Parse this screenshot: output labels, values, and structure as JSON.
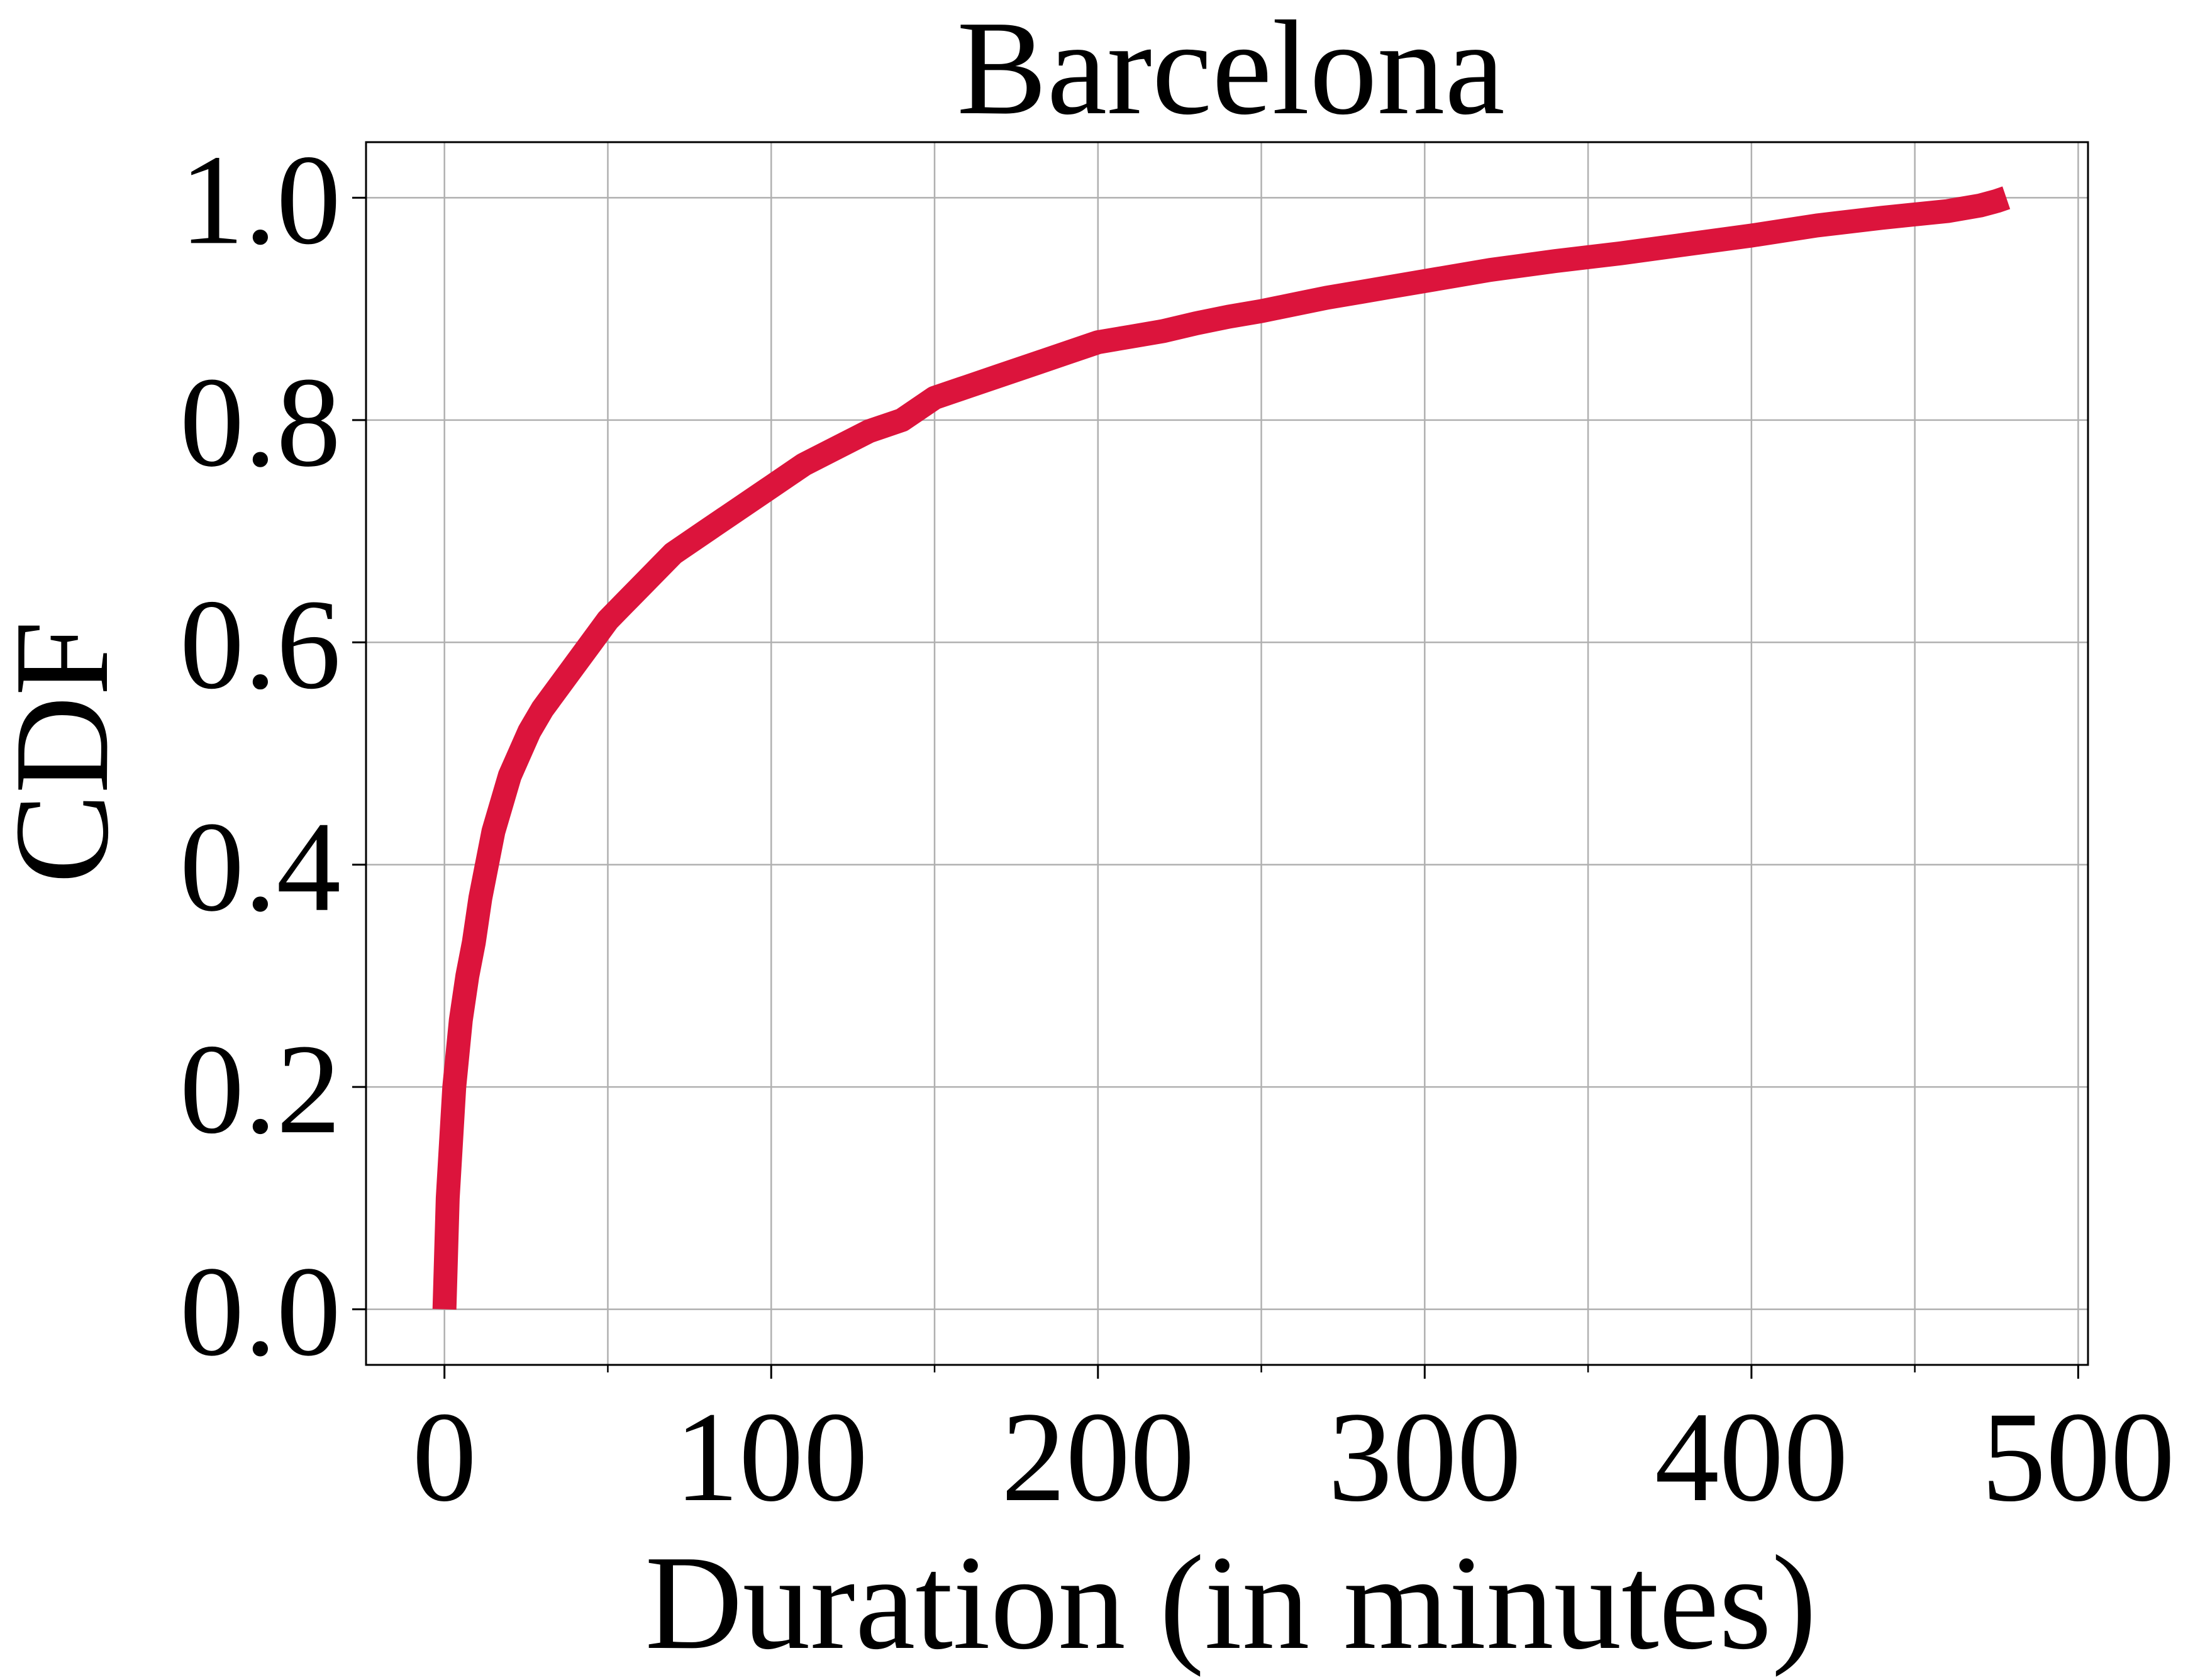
{
  "chart_data": {
    "type": "line",
    "title": "Barcelona",
    "xlabel": "Duration (in minutes)",
    "ylabel": "CDF",
    "xlim": [
      -24,
      503
    ],
    "ylim": [
      -0.05,
      1.05
    ],
    "xticks": [
      0,
      100,
      200,
      300,
      400,
      500
    ],
    "xtick_labels": [
      "0",
      "100",
      "200",
      "300",
      "400",
      "500"
    ],
    "xminor_ticks": [
      50,
      150,
      250,
      350,
      450
    ],
    "yticks": [
      0.0,
      0.2,
      0.4,
      0.6,
      0.8,
      1.0
    ],
    "ytick_labels": [
      "0.0",
      "0.2",
      "0.4",
      "0.6",
      "0.8",
      "1.0"
    ],
    "grid": true,
    "series": [
      {
        "color": "#dc143c",
        "x": [
          0,
          0.5,
          1,
          2,
          3,
          4,
          5,
          7,
          9,
          11,
          13,
          15,
          18,
          20,
          23,
          26,
          30,
          35,
          40,
          45,
          50,
          55,
          60,
          65,
          70,
          80,
          90,
          100,
          110,
          120,
          130,
          140,
          150,
          160,
          170,
          180,
          190,
          200,
          210,
          220,
          230,
          240,
          250,
          260,
          270,
          280,
          290,
          300,
          320,
          340,
          360,
          380,
          400,
          420,
          440,
          460,
          470,
          475,
          478
        ],
        "y": [
          0.0,
          0.05,
          0.1,
          0.15,
          0.2,
          0.23,
          0.26,
          0.3,
          0.33,
          0.37,
          0.4,
          0.43,
          0.46,
          0.48,
          0.5,
          0.52,
          0.54,
          0.56,
          0.58,
          0.6,
          0.62,
          0.635,
          0.65,
          0.665,
          0.68,
          0.7,
          0.72,
          0.74,
          0.76,
          0.775,
          0.79,
          0.8,
          0.82,
          0.83,
          0.84,
          0.85,
          0.86,
          0.87,
          0.875,
          0.88,
          0.887,
          0.893,
          0.898,
          0.904,
          0.91,
          0.915,
          0.92,
          0.925,
          0.935,
          0.943,
          0.95,
          0.958,
          0.966,
          0.975,
          0.982,
          0.988,
          0.993,
          0.997,
          1.0
        ]
      }
    ]
  }
}
